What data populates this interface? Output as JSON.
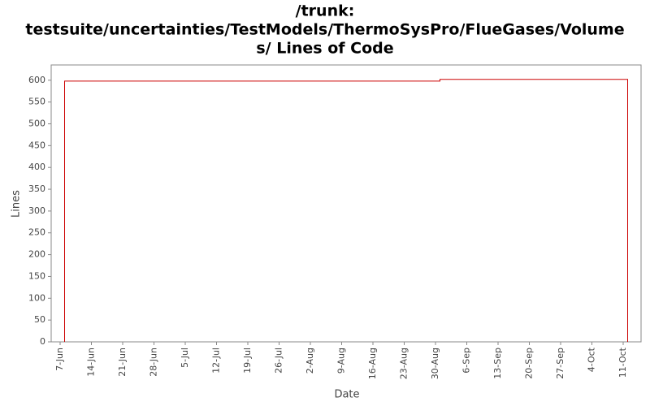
{
  "chart_data": {
    "type": "line",
    "title": [
      "/trunk:",
      "testsuite/uncertainties/TestModels/ThermoSysPro/FlueGases/Volume",
      "s/ Lines of Code"
    ],
    "x_label": "Date",
    "y_label": "Lines",
    "x": [
      "8-Jun",
      "8-Jun",
      "31-Aug",
      "31-Aug",
      "12-Oct",
      "12-Oct"
    ],
    "series": [
      {
        "name": "Lines",
        "color": "#cc0000",
        "values": [
          0,
          598,
          598,
          602,
          602,
          0
        ]
      }
    ],
    "xlim": [
      "5-Jun",
      "15-Oct"
    ],
    "xticks": [
      "7-Jun",
      "14-Jun",
      "21-Jun",
      "28-Jun",
      "5-Jul",
      "12-Jul",
      "19-Jul",
      "26-Jul",
      "2-Aug",
      "9-Aug",
      "16-Aug",
      "23-Aug",
      "30-Aug",
      "6-Sep",
      "13-Sep",
      "20-Sep",
      "27-Sep",
      "4-Oct",
      "11-Oct"
    ],
    "ylim": [
      0,
      635
    ],
    "yticks": [
      0,
      50,
      100,
      150,
      200,
      250,
      300,
      350,
      400,
      450,
      500,
      550,
      600
    ],
    "grid": false
  }
}
